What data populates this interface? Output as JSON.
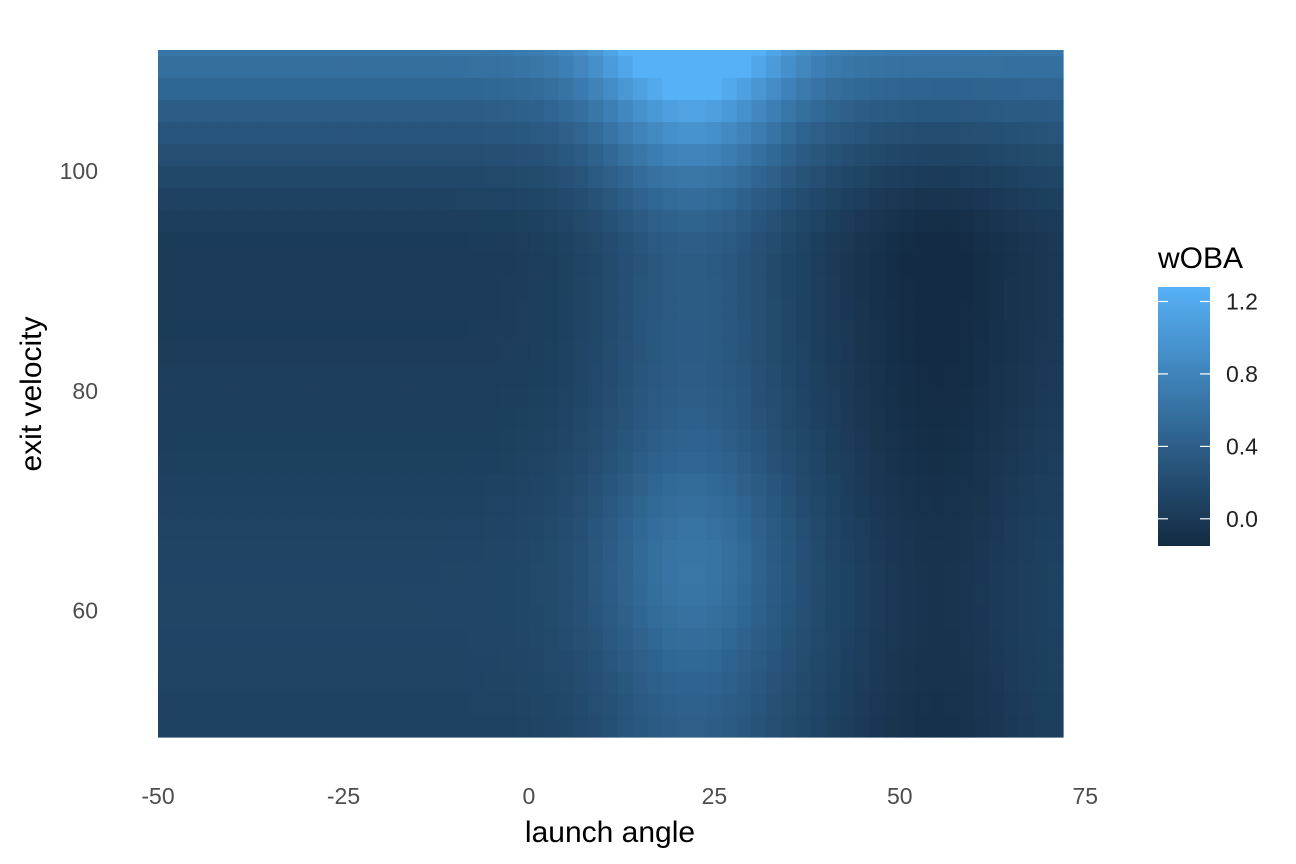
{
  "chart_data": {
    "type": "heatmap",
    "title": "",
    "xlabel": "launch angle",
    "ylabel": "exit velocity",
    "xlim": [
      -50,
      72
    ],
    "ylim": [
      48.5,
      111
    ],
    "x_ticks": [
      "-50",
      "-25",
      "0",
      "25",
      "50",
      "75"
    ],
    "x_tick_values": [
      -50,
      -25,
      0,
      25,
      50,
      75
    ],
    "y_ticks": [
      "60",
      "80",
      "100"
    ],
    "y_tick_values": [
      60,
      80,
      100
    ],
    "x_bin_width": 2,
    "y_bin_width": 2,
    "x_range": [
      -50,
      72
    ],
    "y_range": [
      48.5,
      111
    ],
    "fill_name": "wOBA",
    "fill_range": [
      -0.15,
      1.28
    ],
    "fill_ticks": [
      "0.0",
      "0.4",
      "0.8",
      "1.2"
    ],
    "fill_tick_values": [
      0.0,
      0.4,
      0.8,
      1.2
    ],
    "colors": {
      "low": "#132B43",
      "high": "#56B1F7"
    },
    "grid": false,
    "legend_position": "right",
    "surface_profile": {
      "description_note": "",
      "la_peak_center": 22,
      "ev_peak_center": 108,
      "sample_values": [
        {
          "launch_angle": -50,
          "exit_velocity": 108,
          "woba": 0.55
        },
        {
          "launch_angle": 22,
          "exit_velocity": 108,
          "woba": 1.25
        },
        {
          "launch_angle": 70,
          "exit_velocity": 108,
          "woba": 0.55
        },
        {
          "launch_angle": -25,
          "exit_velocity": 80,
          "woba": 0.05
        },
        {
          "launch_angle": 22,
          "exit_velocity": 80,
          "woba": 0.45
        },
        {
          "launch_angle": 55,
          "exit_velocity": 80,
          "woba": -0.1
        },
        {
          "launch_angle": 22,
          "exit_velocity": 62,
          "woba": 0.55
        },
        {
          "launch_angle": -50,
          "exit_velocity": 62,
          "woba": 0.2
        },
        {
          "launch_angle": 55,
          "exit_velocity": 52,
          "woba": -0.15
        }
      ]
    }
  }
}
